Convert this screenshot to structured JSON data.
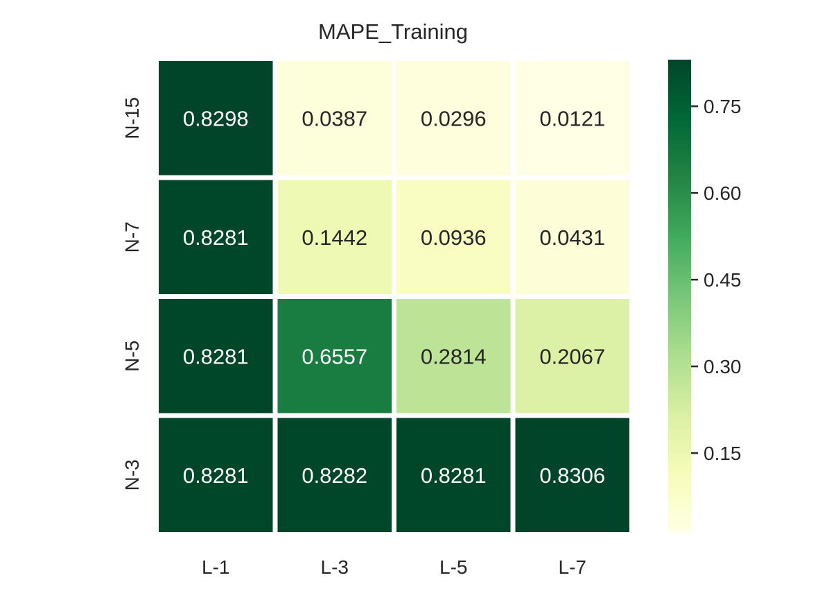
{
  "chart_data": {
    "type": "heatmap",
    "title": "MAPE_Training",
    "xlabel": "",
    "ylabel": "",
    "x_categories": [
      "L-1",
      "L-3",
      "L-5",
      "L-7"
    ],
    "y_categories": [
      "N-15",
      "N-7",
      "N-5",
      "N-3"
    ],
    "values": [
      [
        0.8298,
        0.0387,
        0.0296,
        0.0121
      ],
      [
        0.8281,
        0.1442,
        0.0936,
        0.0431
      ],
      [
        0.8281,
        0.6557,
        0.2814,
        0.2067
      ],
      [
        0.8281,
        0.8282,
        0.8281,
        0.8306
      ]
    ],
    "value_labels": [
      [
        "0.8298",
        "0.0387",
        "0.0296",
        "0.0121"
      ],
      [
        "0.8281",
        "0.1442",
        "0.0936",
        "0.0431"
      ],
      [
        "0.8281",
        "0.6557",
        "0.2814",
        "0.2067"
      ],
      [
        "0.8281",
        "0.8282",
        "0.8281",
        "0.8306"
      ]
    ],
    "colorbar": {
      "range": [
        0.0121,
        0.8306
      ],
      "ticks": [
        0.15,
        0.3,
        0.45,
        0.6,
        0.75
      ],
      "tick_labels": [
        "0.15",
        "0.30",
        "0.45",
        "0.60",
        "0.75"
      ],
      "colormap": "YlGn",
      "colors": [
        "#ffffe5",
        "#f7fcb9",
        "#d9f0a3",
        "#addd8e",
        "#78c679",
        "#41ab5d",
        "#238443",
        "#006837",
        "#004529"
      ]
    }
  }
}
